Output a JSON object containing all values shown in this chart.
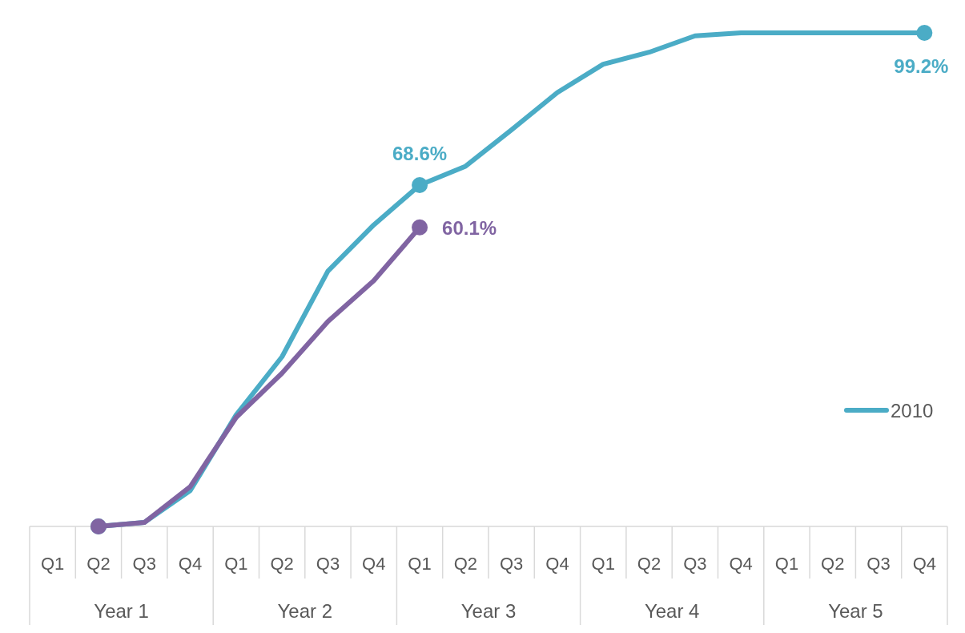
{
  "chart_data": {
    "type": "line",
    "legend": "right",
    "categories": [
      "Q1",
      "Q2",
      "Q3",
      "Q4",
      "Q1",
      "Q2",
      "Q3",
      "Q4",
      "Q1",
      "Q2",
      "Q3",
      "Q4",
      "Q1",
      "Q2",
      "Q3",
      "Q4",
      "Q1",
      "Q2",
      "Q3",
      "Q4"
    ],
    "annotations": [
      "Year 1",
      "Year 2",
      "Year 3",
      "Year 4",
      "Year 5"
    ],
    "series": [
      {
        "name": "2010",
        "color": "#4bacc6",
        "values": [
          null,
          0,
          0.8,
          7.2,
          22.4,
          34.1,
          51.3,
          60.6,
          68.6,
          72.4,
          79.7,
          87.2,
          92.9,
          95.3,
          98.6,
          99.2,
          99.2,
          99.2,
          99.2,
          99.2
        ],
        "value_labels": [
          null,
          null,
          null,
          null,
          null,
          null,
          null,
          null,
          "68.6%",
          null,
          null,
          null,
          null,
          null,
          null,
          null,
          null,
          null,
          null,
          "99.2%"
        ]
      },
      {
        "color": "#8064a2",
        "values": [
          null,
          0,
          0.8,
          8,
          21.9,
          30.8,
          41.2,
          49.4,
          60.1,
          null,
          null,
          null,
          null,
          null,
          null,
          null,
          null,
          null,
          null,
          null
        ],
        "value_labels": [
          null,
          null,
          null,
          null,
          null,
          null,
          null,
          null,
          "60.1%",
          null,
          null,
          null,
          null,
          null,
          null,
          null,
          null,
          null,
          null,
          null
        ]
      }
    ]
  }
}
